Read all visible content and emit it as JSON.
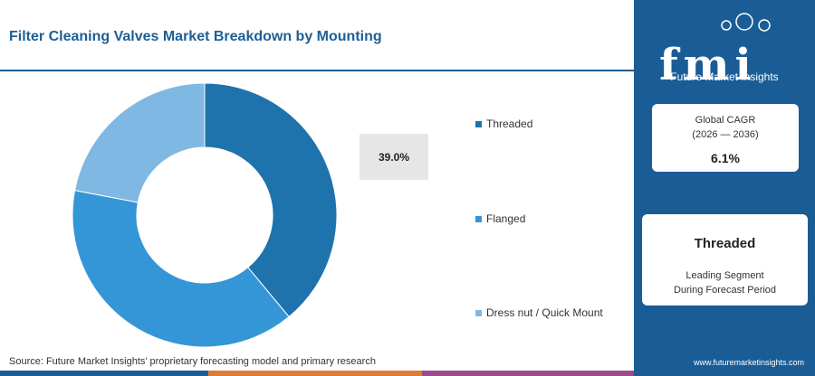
{
  "title": "Filter Cleaning Valves Market Breakdown by Mounting",
  "source": "Source: Future Market Insights’ proprietary forecasting model and primary research",
  "brand": {
    "logo_letters": "fmi",
    "name": "Future Market Insights",
    "website": "www.futuremarketinsights.com"
  },
  "colors": {
    "threaded": "#1f73ad",
    "flanged": "#3496d6",
    "dress_nut": "#7fb8e2",
    "panel": "#1a5d96",
    "title": "#1d5f95"
  },
  "cagr": {
    "label": "Global CAGR",
    "period": "(2026 — 2036)",
    "value": "6.1%"
  },
  "leading_segment": {
    "name": "Threaded",
    "description_line1": "Leading Segment",
    "description_line2": "During Forecast Period"
  },
  "chart_data": {
    "type": "pie",
    "donut": true,
    "title": "Filter Cleaning Valves Market Breakdown by Mounting",
    "categories": [
      "Threaded",
      "Flanged",
      "Dress nut / Quick Mount"
    ],
    "values": [
      39.0,
      39.0,
      22.0
    ],
    "data_labels": [
      {
        "category": "Threaded",
        "text": "39.0%"
      }
    ],
    "legend_position": "right"
  }
}
